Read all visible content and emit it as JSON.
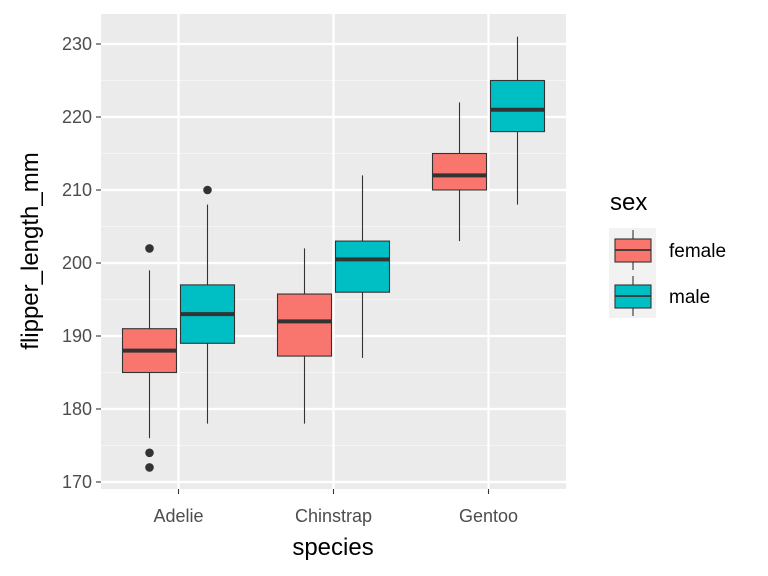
{
  "chart_data": {
    "type": "boxplot",
    "title": "",
    "xlabel": "species",
    "ylabel": "flipper_length_mm",
    "ylim": [
      169,
      233
    ],
    "y_ticks": [
      170,
      180,
      190,
      200,
      210,
      220,
      230
    ],
    "categories": [
      "Adelie",
      "Chinstrap",
      "Gentoo"
    ],
    "grid": true,
    "legend": {
      "title": "sex",
      "position": "right"
    },
    "series": [
      {
        "name": "female",
        "color": "#F8766D",
        "boxes": [
          {
            "whisker_low": 176,
            "q1": 185,
            "median": 188,
            "q3": 191,
            "whisker_high": 199,
            "outliers": [
              202,
              174,
              172
            ]
          },
          {
            "whisker_low": 178,
            "q1": 187.25,
            "median": 192,
            "q3": 195.75,
            "whisker_high": 202,
            "outliers": []
          },
          {
            "whisker_low": 203,
            "q1": 210,
            "median": 212,
            "q3": 215,
            "whisker_high": 222,
            "outliers": []
          }
        ]
      },
      {
        "name": "male",
        "color": "#00BFC4",
        "boxes": [
          {
            "whisker_low": 178,
            "q1": 189,
            "median": 193,
            "q3": 197,
            "whisker_high": 208,
            "outliers": [
              210
            ]
          },
          {
            "whisker_low": 187,
            "q1": 196,
            "median": 200.5,
            "q3": 203,
            "whisker_high": 212,
            "outliers": []
          },
          {
            "whisker_low": 208,
            "q1": 218,
            "median": 221,
            "q3": 225,
            "whisker_high": 231,
            "outliers": []
          }
        ]
      }
    ]
  }
}
